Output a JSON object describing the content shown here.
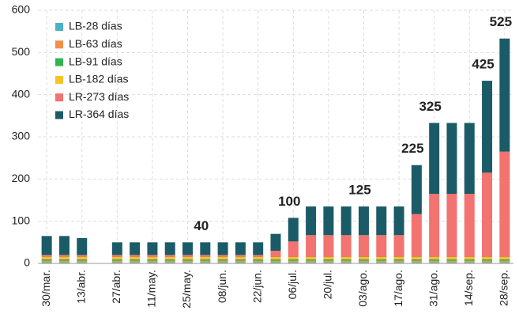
{
  "chart_data": {
    "type": "stacked_bar",
    "categories": [
      "30/mar.",
      null,
      "13/abr.",
      null,
      "27/abr.",
      null,
      "11/may.",
      null,
      "25/may.",
      null,
      "08/jun.",
      null,
      "22/jun.",
      null,
      "06/jul.",
      null,
      "20/jul.",
      null,
      "03/ago.",
      null,
      "17/ago.",
      null,
      "31/ago.",
      null,
      "14/sep.",
      null,
      "28/sep."
    ],
    "series": [
      {
        "name": "LB-28 días",
        "color": "#4ab3c8",
        "values": [
          2,
          2,
          2,
          null,
          2,
          2,
          2,
          2,
          2,
          2,
          2,
          2,
          2,
          2,
          2,
          2,
          2,
          2,
          2,
          2,
          2,
          2,
          2,
          2,
          2,
          2,
          2
        ]
      },
      {
        "name": "LB-63 días",
        "color": "#f0914a",
        "values": [
          4,
          4,
          4,
          null,
          4,
          4,
          4,
          4,
          4,
          4,
          4,
          4,
          4,
          4,
          4,
          4,
          4,
          4,
          4,
          4,
          4,
          4,
          4,
          4,
          4,
          4,
          4
        ]
      },
      {
        "name": "LB-91 días",
        "color": "#2fb552",
        "values": [
          4,
          4,
          4,
          null,
          4,
          4,
          4,
          4,
          4,
          4,
          4,
          4,
          4,
          4,
          4,
          4,
          4,
          4,
          4,
          4,
          4,
          4,
          4,
          4,
          4,
          4,
          4
        ]
      },
      {
        "name": "LB-182 días",
        "color": "#f6c425",
        "values": [
          5,
          5,
          5,
          null,
          5,
          5,
          5,
          5,
          5,
          5,
          5,
          5,
          5,
          5,
          5,
          5,
          5,
          5,
          5,
          5,
          5,
          5,
          5,
          5,
          5,
          5,
          5
        ]
      },
      {
        "name": "LR-273 días",
        "color": "#f2736f",
        "values": [
          5,
          5,
          5,
          null,
          5,
          5,
          5,
          5,
          5,
          5,
          5,
          5,
          5,
          15,
          37,
          52,
          52,
          52,
          52,
          52,
          52,
          102,
          150,
          150,
          150,
          200,
          250
        ]
      },
      {
        "name": "LR-364 días",
        "color": "#1b5b68",
        "values": [
          45,
          45,
          40,
          null,
          30,
          30,
          30,
          30,
          30,
          30,
          30,
          30,
          30,
          40,
          56,
          68,
          68,
          68,
          68,
          68,
          68,
          116,
          168,
          168,
          168,
          218,
          268
        ]
      }
    ],
    "annotations": [
      null,
      null,
      null,
      null,
      null,
      null,
      null,
      null,
      null,
      "40",
      null,
      null,
      null,
      null,
      "100",
      null,
      null,
      null,
      "125",
      null,
      null,
      "225",
      "325",
      null,
      null,
      "425",
      "525"
    ],
    "ylim": [
      0,
      600
    ],
    "yticks": [
      0,
      100,
      200,
      300,
      400,
      500,
      600
    ],
    "grid": true,
    "legend": "top-left"
  }
}
